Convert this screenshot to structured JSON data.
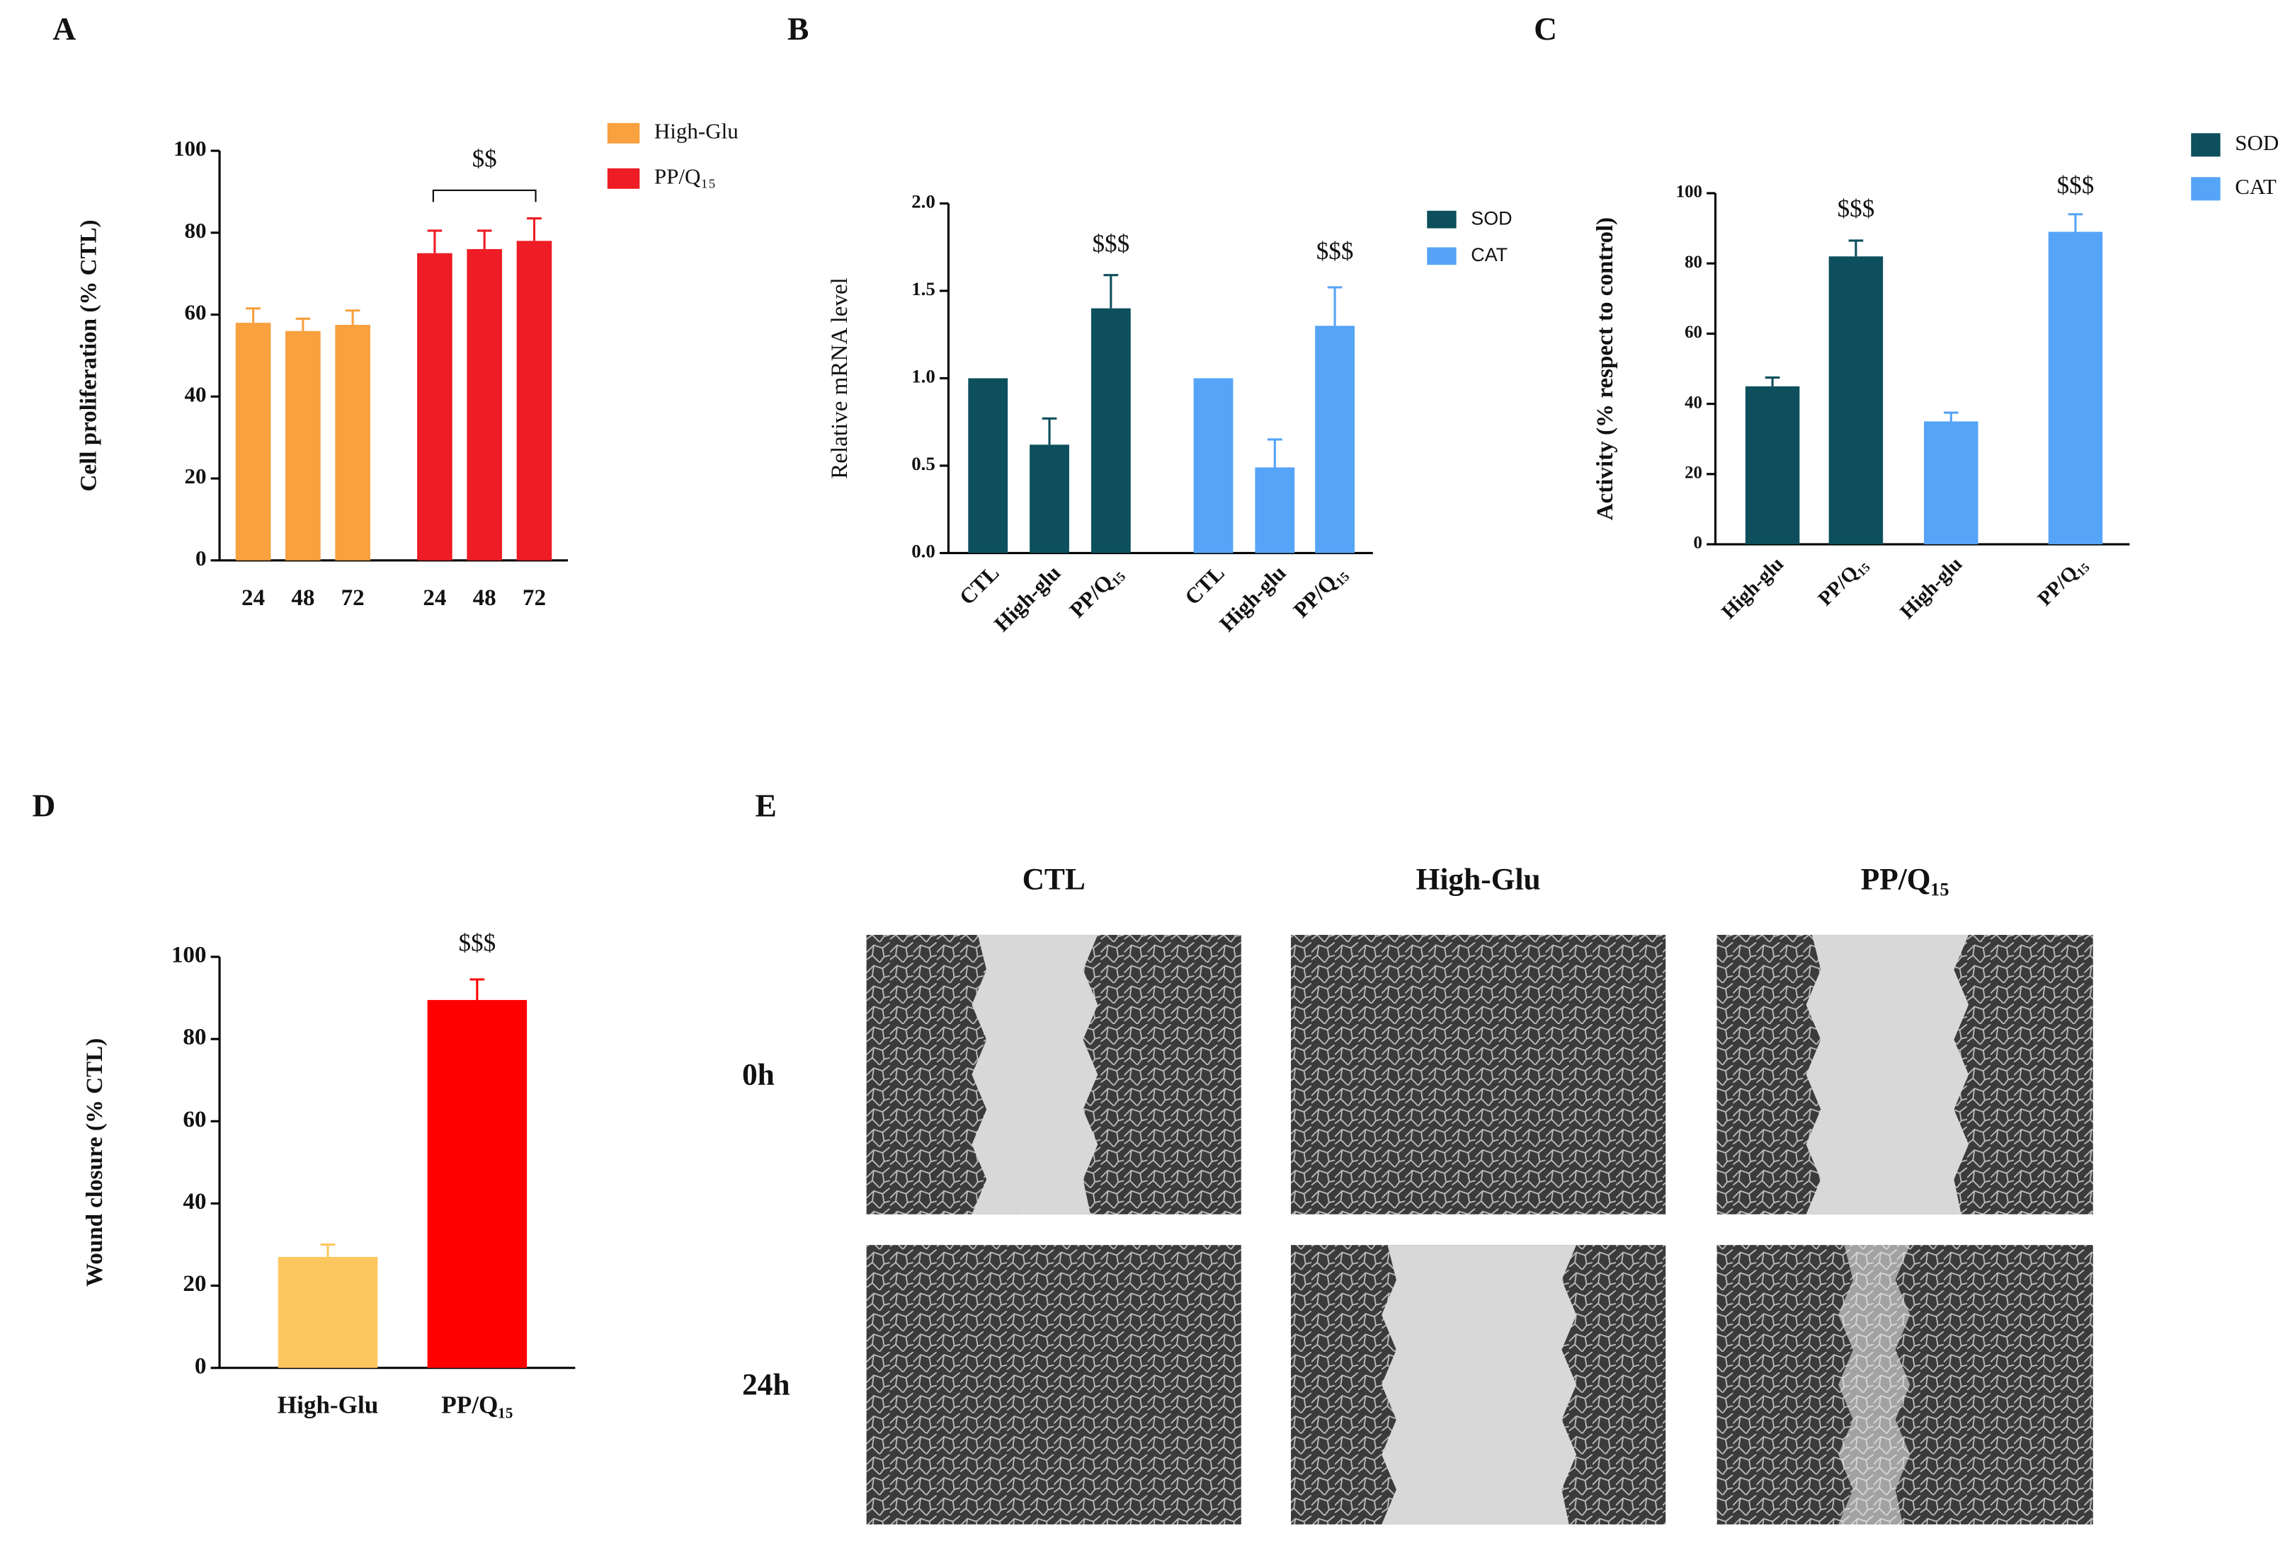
{
  "chart_data": [
    {
      "type": "bar",
      "panel": "A",
      "ylabel": "Cell proliferation (% CTL)",
      "categories": [
        "24",
        "48",
        "72"
      ],
      "series": [
        {
          "name": "High-Glu",
          "color": "#f9a03f",
          "values": [
            58,
            56,
            57.5
          ],
          "errors": [
            3.5,
            3,
            3.5
          ]
        },
        {
          "name": "PP/Q₁₅",
          "color": "#ee1c25",
          "values": [
            75,
            76,
            78
          ],
          "errors": [
            5.5,
            4.5,
            5.5
          ]
        }
      ],
      "ylim": [
        0,
        100
      ],
      "yticks": [
        0,
        20,
        40,
        60,
        80,
        100
      ],
      "annotations": [
        "$$"
      ]
    },
    {
      "type": "bar",
      "panel": "B",
      "ylabel": "Relative mRNA level",
      "categories": [
        "CTL",
        "High-glu",
        "PP/Q₁₅"
      ],
      "series": [
        {
          "name": "SOD",
          "color": "#0d4f5c",
          "values": [
            1,
            0.62,
            1.4
          ],
          "errors": [
            0,
            0.15,
            0.19
          ]
        },
        {
          "name": "CAT",
          "color": "#55a4f7",
          "values": [
            1,
            0.49,
            1.3
          ],
          "errors": [
            0,
            0.16,
            0.22
          ]
        }
      ],
      "ylim": [
        0,
        2
      ],
      "yticks": [
        {
          "value": 0,
          "label": "0.0"
        },
        0.5,
        {
          "value": 1,
          "label": "1.0"
        },
        1.5,
        {
          "value": 2,
          "label": "2.0"
        }
      ],
      "annotations": [
        "$$$",
        "$$$"
      ]
    },
    {
      "type": "bar",
      "panel": "C",
      "ylabel": "Activity (% respect to control)",
      "categories": [
        "High-glu",
        "PP/Q₁₅"
      ],
      "series": [
        {
          "name": "SOD",
          "color": "#0d4f5c",
          "values": [
            45,
            82
          ],
          "errors": [
            2.5,
            4.5
          ]
        },
        {
          "name": "CAT",
          "color": "#55a4f7",
          "values": [
            35,
            89
          ],
          "errors": [
            2.5,
            5
          ]
        }
      ],
      "ylim": [
        0,
        100
      ],
      "yticks": [
        0,
        20,
        40,
        60,
        80,
        100
      ],
      "annotations": [
        "$$$",
        "$$$"
      ]
    },
    {
      "type": "bar",
      "panel": "D",
      "ylabel": "Wound closure (% CTL)",
      "categories": [
        "High-Glu",
        "PP/Q₁₅"
      ],
      "series": [
        {
          "colors": [
            "#fdc75f",
            "#ff0000"
          ],
          "values": [
            27,
            89.5
          ],
          "errors": [
            3,
            5
          ]
        }
      ],
      "ylim": [
        0,
        100
      ],
      "yticks": [
        0,
        20,
        40,
        60,
        80,
        100
      ],
      "annotations": [
        "$$$"
      ]
    }
  ],
  "image_panel": {
    "label": "E",
    "columns": [
      "CTL",
      "High-Glu",
      "PP/Q₁₅"
    ],
    "rows": [
      "0h",
      "24h"
    ]
  }
}
